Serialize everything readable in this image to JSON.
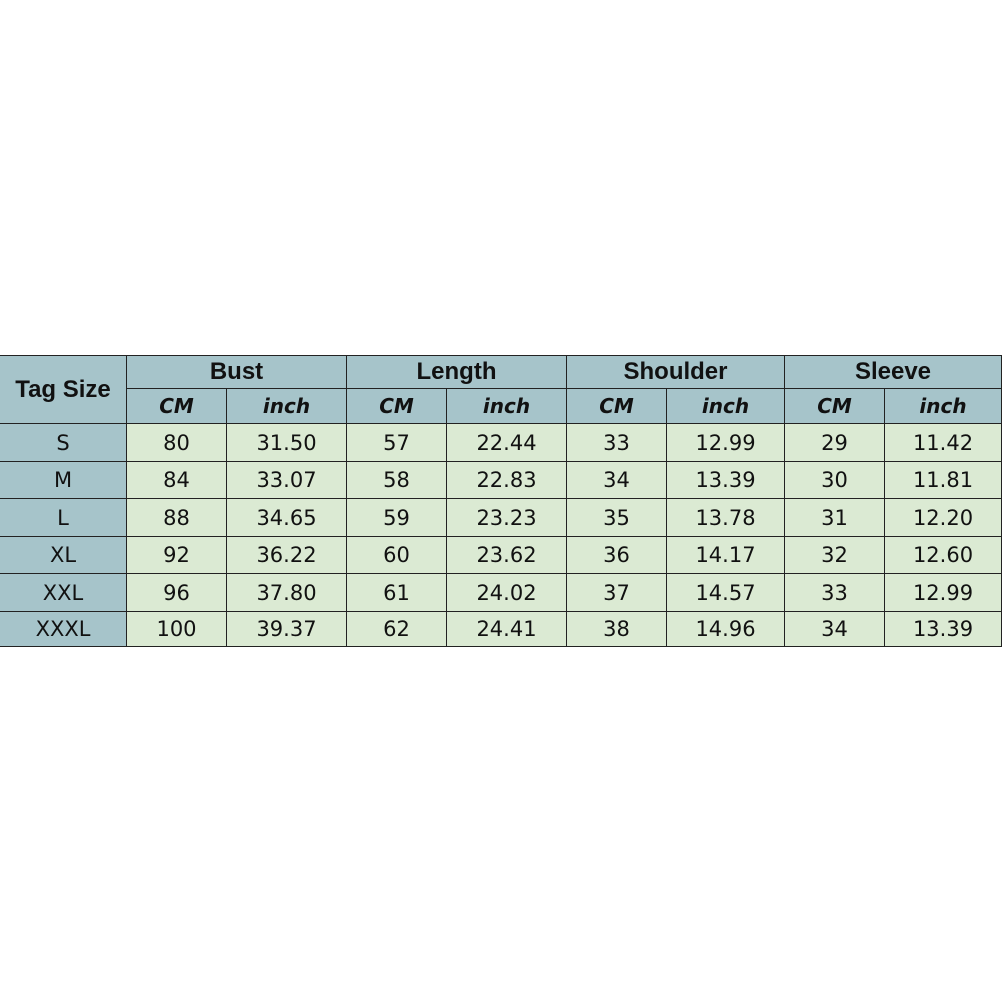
{
  "table": {
    "corner": "Tag Size",
    "groups": [
      "Bust",
      "Length",
      "Shoulder",
      "Sleeve"
    ],
    "units": [
      "CM",
      "inch",
      "CM",
      "inch",
      "CM",
      "inch",
      "CM",
      "inch"
    ],
    "rows": [
      [
        "S",
        "80",
        "31.50",
        "57",
        "22.44",
        "33",
        "12.99",
        "29",
        "11.42"
      ],
      [
        "M",
        "84",
        "33.07",
        "58",
        "22.83",
        "34",
        "13.39",
        "30",
        "11.81"
      ],
      [
        "L",
        "88",
        "34.65",
        "59",
        "23.23",
        "35",
        "13.78",
        "31",
        "12.20"
      ],
      [
        "XL",
        "92",
        "36.22",
        "60",
        "23.62",
        "36",
        "14.17",
        "32",
        "12.60"
      ],
      [
        "XXL",
        "96",
        "37.80",
        "61",
        "24.02",
        "37",
        "14.57",
        "33",
        "12.99"
      ],
      [
        "XXXL",
        "100",
        "39.37",
        "62",
        "24.41",
        "38",
        "14.96",
        "34",
        "13.39"
      ]
    ]
  }
}
